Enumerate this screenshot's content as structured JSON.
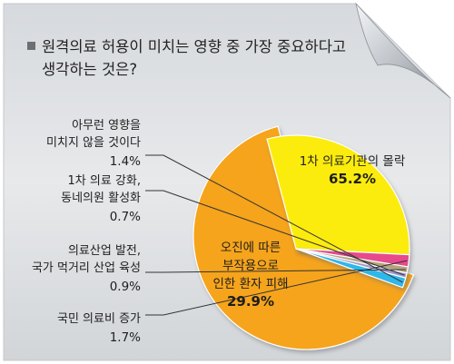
{
  "chart_data": {
    "type": "pie",
    "title": "원격의료 허용이 미치는 영향 중 가장 중요하다고 생각하는 것은?",
    "title_lines": [
      "원격의료 허용이 미치는 영향 중 가장 중요하다고",
      "생각하는 것은?"
    ],
    "unit": "%",
    "slices": [
      {
        "name": "1차 의료기관의 몰락",
        "label_lines": [
          "1차 의료기관의 몰락"
        ],
        "value": 65.2,
        "value_label": "65.2%",
        "color": "#f5a41c",
        "exploded": false
      },
      {
        "name": "오진에 따른 부작용으로 인한 환자 피해",
        "label_lines": [
          "오진에 따른",
          "부작용으로",
          "인한 환자 피해"
        ],
        "value": 29.9,
        "value_label": "29.9%",
        "color": "#fcec0c",
        "exploded": true
      },
      {
        "name": "국민 의료비 증가",
        "label_lines": [
          "국민 의료비 증가"
        ],
        "value": 1.7,
        "value_label": "1.7%",
        "color": "#e84a8c",
        "exploded": true
      },
      {
        "name": "의료산업 발전, 국가 먹거리 산업 육성",
        "label_lines": [
          "의료산업 발전,",
          "국가 먹거리 산업 육성"
        ],
        "value": 0.9,
        "value_label": "0.9%",
        "color": "#b5a57c",
        "exploded": true
      },
      {
        "name": "1차 의료 강화, 동네의원 활성화",
        "label_lines": [
          "1차 의료 강화,",
          "동네의원 활성화"
        ],
        "value": 0.7,
        "value_label": "0.7%",
        "color": "#a39ad0",
        "exploded": true
      },
      {
        "name": "아무런 영향을 미치지 않을 것이다",
        "label_lines": [
          "아무런 영향을",
          "미치지 않을 것이다"
        ],
        "value": 1.4,
        "value_label": "1.4%",
        "color": "#2eb7ea",
        "exploded": true
      }
    ]
  }
}
